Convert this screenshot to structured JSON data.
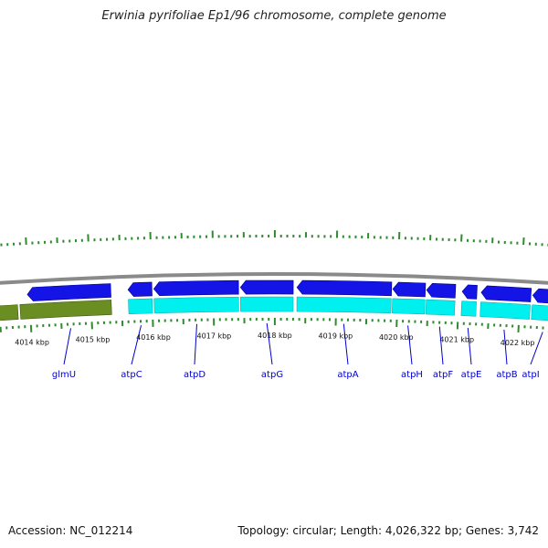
{
  "title": "Erwinia pyrifoliae Ep1/96 chromosome, complete genome",
  "colors": {
    "backbone": "#8a8a8a",
    "cds_forward": "#1414e6",
    "cds_forward_dark": "#00008a",
    "cds_reverse": "#6b8e23",
    "cds_reverse_dark": "#3f5a10",
    "cds_feature": "#00f0f0",
    "cds_feature_dark": "#00a8a8",
    "tick": "#2e8b2e",
    "gene_label": "#0000cc"
  },
  "axis": {
    "unit": "kbp",
    "ticks": [
      {
        "label": "4014 kbp",
        "kbp": 4014
      },
      {
        "label": "4015 kbp",
        "kbp": 4015
      },
      {
        "label": "4016 kbp",
        "kbp": 4016
      },
      {
        "label": "4017 kbp",
        "kbp": 4017
      },
      {
        "label": "4018 kbp",
        "kbp": 4018
      },
      {
        "label": "4019 kbp",
        "kbp": 4019
      },
      {
        "label": "4020 kbp",
        "kbp": 4020
      },
      {
        "label": "4021 kbp",
        "kbp": 4021
      },
      {
        "label": "4022 kbp",
        "kbp": 4022
      }
    ]
  },
  "genes": [
    {
      "name": "glmU",
      "start": 4013.97,
      "end": 4015.33
    },
    {
      "name": "atpC",
      "start": 4015.61,
      "end": 4016.0
    },
    {
      "name": "atpD",
      "start": 4016.03,
      "end": 4017.41
    },
    {
      "name": "atpG",
      "start": 4017.44,
      "end": 4018.3
    },
    {
      "name": "atpA",
      "start": 4018.36,
      "end": 4019.9
    },
    {
      "name": "atpH",
      "start": 4019.92,
      "end": 4020.45
    },
    {
      "name": "atpF",
      "start": 4020.47,
      "end": 4020.94
    },
    {
      "name": "atpE",
      "start": 4021.05,
      "end": 4021.29
    },
    {
      "name": "atpB",
      "start": 4021.36,
      "end": 4022.17
    },
    {
      "name": "atpI",
      "start": 4022.2,
      "end": 4022.6
    }
  ],
  "reverse_strand": [
    {
      "start": 4013.0,
      "end": 4013.8
    },
    {
      "start": 4013.84,
      "end": 4015.33
    }
  ],
  "accession_label": "Accession: NC_012214",
  "summary_label": "Topology: circular; Length: 4,026,322 bp; Genes: 3,742"
}
